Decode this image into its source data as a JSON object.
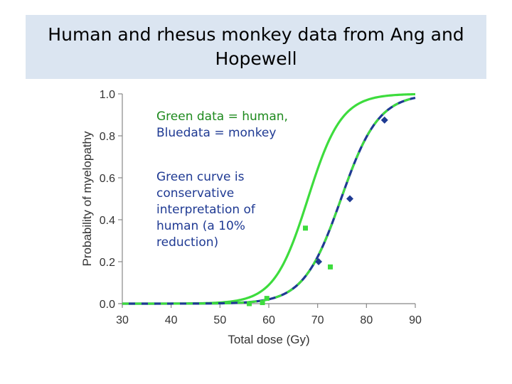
{
  "slide": {
    "title": "Human and rhesus monkey data from Ang and Hopewell",
    "annotation_data_green": "Green data = human,",
    "annotation_data_blue": "Bluedata = monkey",
    "annotation_curve": "Green curve is conservative interpretation of human (a 10% reduction)"
  },
  "colors": {
    "green": "#3ddc3d",
    "blue": "#1f3a93",
    "green_text": "#1e8a1e",
    "title_bg": "#dbe5f1"
  },
  "chart_data": {
    "type": "line",
    "xlabel": "Total dose (Gy)",
    "ylabel": "Probability of myelopathy",
    "xlim": [
      30,
      90
    ],
    "ylim": [
      0,
      1.0
    ],
    "x_ticks": [
      "30",
      "40",
      "50",
      "60",
      "70",
      "80",
      "90"
    ],
    "y_ticks": [
      "0.0",
      "0.2",
      "0.4",
      "0.6",
      "0.8",
      "1.0"
    ],
    "grid": false,
    "curves": [
      {
        "color": "green",
        "style": "solid",
        "midpoint": 68.0,
        "slope": 0.29
      },
      {
        "color": "blue",
        "style": "solid",
        "midpoint": 74.8,
        "slope": 0.26
      },
      {
        "color": "green",
        "style": "dashed",
        "midpoint": 74.8,
        "slope": 0.26
      }
    ],
    "series": [
      {
        "marker": "square",
        "color": "green",
        "points": [
          [
            56,
            0.0
          ],
          [
            58.7,
            0.005
          ],
          [
            59.6,
            0.025
          ],
          [
            67.5,
            0.36
          ],
          [
            72.6,
            0.175
          ]
        ]
      },
      {
        "marker": "diamond",
        "color": "blue",
        "points": [
          [
            70.2,
            0.2
          ],
          [
            76.6,
            0.5
          ],
          [
            83.7,
            0.875
          ]
        ]
      }
    ]
  }
}
